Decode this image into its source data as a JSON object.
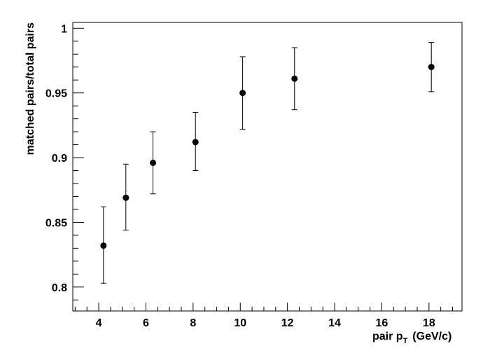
{
  "chart_data": {
    "type": "scatter",
    "xlabel": {
      "main": "pair p",
      "sub": "T",
      "unit": "(GeV/c)"
    },
    "ylabel": "matched pairs/total pairs",
    "xlim": [
      2.9,
      19.4
    ],
    "ylim": [
      0.7815,
      1.0045
    ],
    "x_ticks": [
      4,
      6,
      8,
      10,
      12,
      14,
      16,
      18
    ],
    "x_tick_labels": [
      "4",
      "6",
      "8",
      "10",
      "12",
      "14",
      "16",
      "18"
    ],
    "y_ticks": [
      0.8,
      0.85,
      0.9,
      0.95,
      1.0
    ],
    "y_tick_labels": [
      "0.8",
      "0.85",
      "0.9",
      "0.95",
      "1"
    ],
    "grid": false,
    "series": [
      {
        "marker": "circle",
        "color": "#000000",
        "points": [
          {
            "x": 4.2,
            "y": 0.832,
            "err_low": 0.029,
            "err_high": 0.03
          },
          {
            "x": 5.15,
            "y": 0.869,
            "err_low": 0.025,
            "err_high": 0.026
          },
          {
            "x": 6.3,
            "y": 0.896,
            "err_low": 0.024,
            "err_high": 0.024
          },
          {
            "x": 8.1,
            "y": 0.912,
            "err_low": 0.022,
            "err_high": 0.023
          },
          {
            "x": 10.1,
            "y": 0.95,
            "err_low": 0.028,
            "err_high": 0.028
          },
          {
            "x": 12.3,
            "y": 0.961,
            "err_low": 0.024,
            "err_high": 0.024
          },
          {
            "x": 18.1,
            "y": 0.97,
            "err_low": 0.019,
            "err_high": 0.019
          }
        ]
      }
    ]
  }
}
